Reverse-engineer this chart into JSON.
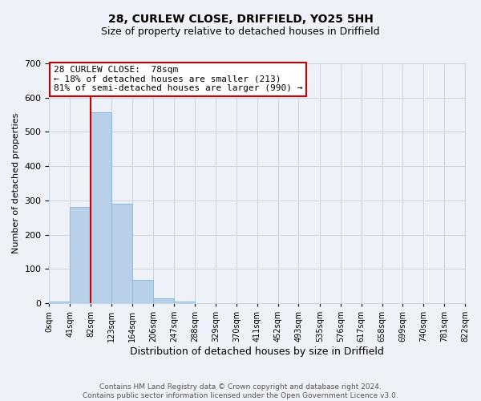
{
  "title": "28, CURLEW CLOSE, DRIFFIELD, YO25 5HH",
  "subtitle": "Size of property relative to detached houses in Driffield",
  "bar_values": [
    5,
    280,
    558,
    290,
    68,
    13,
    5,
    0,
    0,
    0,
    0,
    0,
    0,
    0,
    0,
    0,
    0,
    0,
    0,
    0
  ],
  "bin_edges": [
    0,
    41,
    82,
    123,
    164,
    206,
    247,
    288,
    329,
    370,
    411,
    452,
    493,
    535,
    576,
    617,
    658,
    699,
    740,
    781,
    822
  ],
  "tick_labels": [
    "0sqm",
    "41sqm",
    "82sqm",
    "123sqm",
    "164sqm",
    "206sqm",
    "247sqm",
    "288sqm",
    "329sqm",
    "370sqm",
    "411sqm",
    "452sqm",
    "493sqm",
    "535sqm",
    "576sqm",
    "617sqm",
    "658sqm",
    "699sqm",
    "740sqm",
    "781sqm",
    "822sqm"
  ],
  "bar_color": "#b8d0e8",
  "bar_edge_color": "#90b8d8",
  "xlabel": "Distribution of detached houses by size in Driffield",
  "ylabel": "Number of detached properties",
  "ylim": [
    0,
    700
  ],
  "property_line_x": 82,
  "annotation_title": "28 CURLEW CLOSE:  78sqm",
  "annotation_line1": "← 18% of detached houses are smaller (213)",
  "annotation_line2": "81% of semi-detached houses are larger (990) →",
  "annotation_box_color": "#ffffff",
  "annotation_box_edgecolor": "#cc0000",
  "property_line_color": "#cc0000",
  "footer1": "Contains HM Land Registry data © Crown copyright and database right 2024.",
  "footer2": "Contains public sector information licensed under the Open Government Licence v3.0.",
  "bg_color": "#eef2f8",
  "grid_color": "#c8d4e4",
  "title_fontsize": 10,
  "subtitle_fontsize": 9
}
